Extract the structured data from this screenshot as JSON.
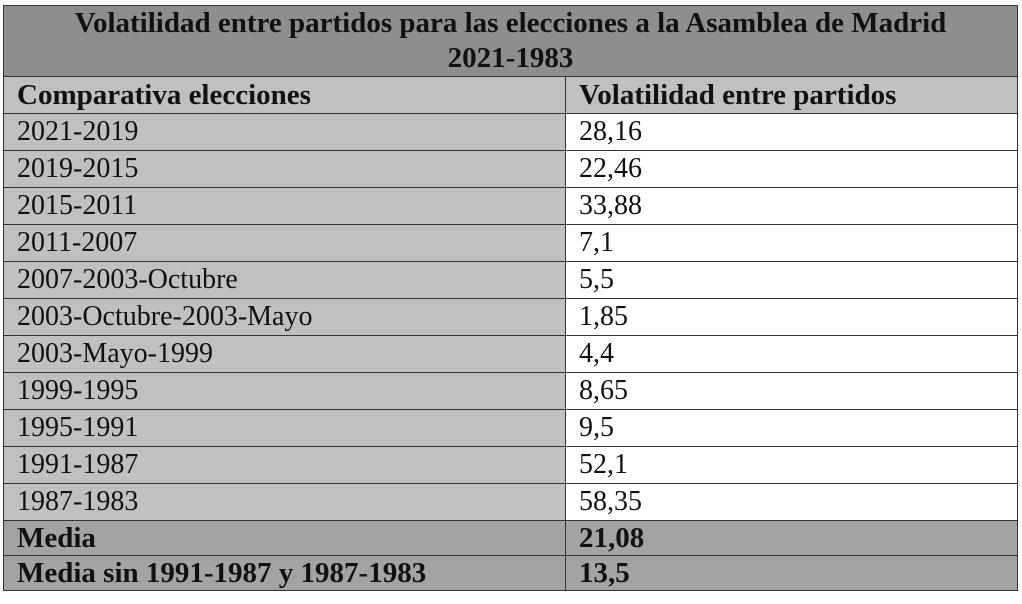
{
  "title_line1": "Volatilidad entre partidos para las elecciones a la Asamblea de Madrid",
  "title_line2": "2021-1983",
  "headers": [
    "Comparativa elecciones",
    "Volatilidad entre partidos"
  ],
  "rows": [
    [
      "2021-2019",
      "28,16"
    ],
    [
      "2019-2015",
      "22,46"
    ],
    [
      "2015-2011",
      "33,88"
    ],
    [
      "2011-2007",
      "7,1"
    ],
    [
      "2007-2003-Octubre",
      "5,5"
    ],
    [
      "2003-Octubre-2003-Mayo",
      "1,85"
    ],
    [
      "2003-Mayo-1999",
      "4,4"
    ],
    [
      "1999-1995",
      "8,65"
    ],
    [
      "1995-1991",
      "9,5"
    ],
    [
      "1991-1987",
      "52,1"
    ],
    [
      "1987-1983",
      "58,35"
    ]
  ],
  "summary": [
    [
      "Media",
      "21,08"
    ],
    [
      "Media sin 1991-1987 y 1987-1983",
      "13,5"
    ]
  ]
}
